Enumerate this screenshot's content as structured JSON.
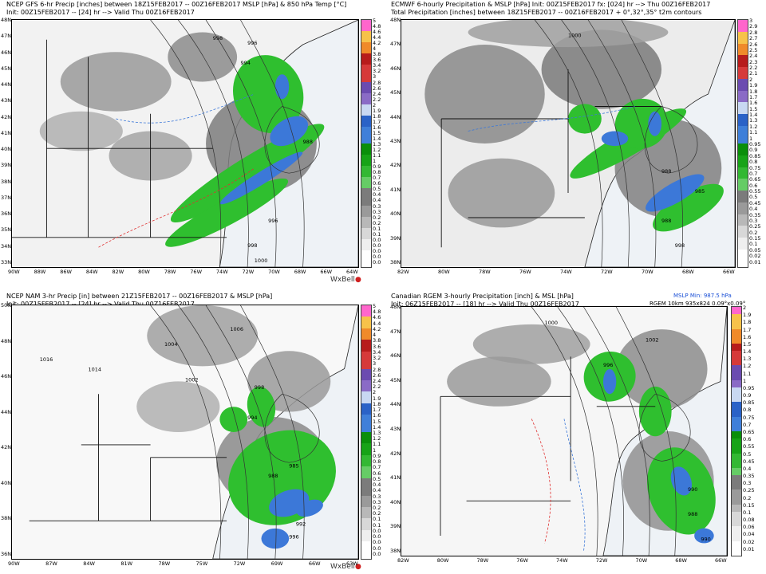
{
  "colors": {
    "precip_ramp": [
      "#ffffff",
      "#efefef",
      "#d8d8d8",
      "#b8b8b8",
      "#9a9a9a",
      "#7b7b7b",
      "#66cc66",
      "#33b833",
      "#17a317",
      "#0a8f0a",
      "#3f7fd9",
      "#2a62c7",
      "#c8d8f2",
      "#8a6bc6",
      "#6b4bb0",
      "#d63a3a",
      "#b71c1c",
      "#f08a2a",
      "#f7c24a",
      "#ff66cc"
    ],
    "green": "#2fbf2f",
    "blue": "#3c78d8",
    "gray": "#8c8c8c",
    "red": "#e03030"
  },
  "panels": [
    {
      "id": "gfs",
      "header": [
        "NCEP GFS 6-hr Precip [inches] between 18Z15FEB2017 -- 00Z16FEB2017 MSLP [hPa] & 850 hPa Temp [°C]",
        "Init: 00Z15FEB2017 -- [24] hr --> Valid Thu 00Z16FEB2017"
      ],
      "lat_labels": [
        "48N",
        "47N",
        "46N",
        "45N",
        "44N",
        "43N",
        "42N",
        "41N",
        "40N",
        "39N",
        "38N",
        "37N",
        "36N",
        "35N",
        "34N",
        "33N"
      ],
      "lon_labels": [
        "90W",
        "88W",
        "86W",
        "84W",
        "82W",
        "80W",
        "78W",
        "76W",
        "74W",
        "72W",
        "70W",
        "68W",
        "66W",
        "64W"
      ],
      "colorbar": [
        "5",
        "4.8",
        "4.6",
        "4.4",
        "4.2",
        "4",
        "3.8",
        "3.6",
        "3.4",
        "3.2",
        "3",
        "2.8",
        "2.6",
        "2.4",
        "2.2",
        "2",
        "1.9",
        "1.8",
        "1.7",
        "1.6",
        "1.5",
        "1.4",
        "1.3",
        "1.2",
        "1.1",
        "1",
        "0.9",
        "0.8",
        "0.7",
        "0.6",
        "0.5",
        "0.45",
        "0.4",
        "0.35",
        "0.3",
        "0.25",
        "0.2",
        "0.15",
        "0.1",
        "0.08",
        "0.06",
        "0.04",
        "0.02",
        "0.01"
      ],
      "isobars": [
        "998",
        "996",
        "994",
        "988",
        "996",
        "998",
        "1000"
      ],
      "brand": "WxBell"
    },
    {
      "id": "ecmwf",
      "header": [
        "ECMWF 6-hourly Precipitation & MSLP [hPa] Init: 00Z15FEB2017 fx: [024] hr --> Thu 00Z16FEB2017",
        "Total Precipitation [inches] between 18Z15FEB2017 -- 00Z16FEB2017 + 0°,32°,35° t2m contours"
      ],
      "lat_labels": [
        "48N",
        "47N",
        "46N",
        "45N",
        "44N",
        "43N",
        "42N",
        "41N",
        "40N",
        "39N",
        "38N"
      ],
      "lon_labels": [
        "82W",
        "80W",
        "78W",
        "76W",
        "74W",
        "72W",
        "70W",
        "68W",
        "66W"
      ],
      "colorbar": [
        "3",
        "2.9",
        "2.8",
        "2.7",
        "2.6",
        "2.5",
        "2.4",
        "2.3",
        "2.2",
        "2.1",
        "2",
        "1.9",
        "1.8",
        "1.7",
        "1.6",
        "1.5",
        "1.4",
        "1.3",
        "1.2",
        "1.1",
        "1",
        "0.95",
        "0.9",
        "0.85",
        "0.8",
        "0.75",
        "0.7",
        "0.65",
        "0.6",
        "0.55",
        "0.5",
        "0.45",
        "0.4",
        "0.35",
        "0.3",
        "0.25",
        "0.2",
        "0.15",
        "0.1",
        "0.05",
        "0.02",
        "0.01"
      ],
      "isobars": [
        "1000",
        "988",
        "985",
        "988",
        "998"
      ],
      "brand": ""
    },
    {
      "id": "nam",
      "header": [
        "NCEP NAM 3-hr Precip [in] between 21Z15FEB2017 -- 00Z16FEB2017 & MSLP [hPa]",
        "Init: 00Z15FEB2017 -- [24] hr --> Valid Thu 00Z16FEB2017"
      ],
      "lat_labels": [
        "50N",
        "48N",
        "46N",
        "44N",
        "42N",
        "40N",
        "38N",
        "36N"
      ],
      "lon_labels": [
        "90W",
        "87W",
        "84W",
        "81W",
        "78W",
        "75W",
        "72W",
        "69W",
        "66W",
        "63W"
      ],
      "colorbar": [
        "5",
        "4.8",
        "4.6",
        "4.4",
        "4.2",
        "4",
        "3.8",
        "3.6",
        "3.4",
        "3.2",
        "3",
        "2.8",
        "2.6",
        "2.4",
        "2.2",
        "2",
        "1.9",
        "1.8",
        "1.7",
        "1.6",
        "1.5",
        "1.4",
        "1.3",
        "1.2",
        "1.1",
        "1",
        "0.9",
        "0.8",
        "0.7",
        "0.6",
        "0.5",
        "0.45",
        "0.4",
        "0.35",
        "0.3",
        "0.25",
        "0.2",
        "0.15",
        "0.1",
        "0.08",
        "0.06",
        "0.04",
        "0.02",
        "0.01"
      ],
      "isobars": [
        "1016",
        "1014",
        "1004",
        "1006",
        "1002",
        "998",
        "994",
        "988",
        "985",
        "992",
        "996"
      ],
      "brand": "WxBell"
    },
    {
      "id": "rgem",
      "header": [
        "Canadian RGEM 3-hourly Precipitation [inch] & MSL [hPa]",
        "Init: 06Z15FEB2017 -- [18] hr --> Valid Thu 00Z16FEB2017"
      ],
      "notes": [
        "MSLP Min: 987.5 hPa",
        "RGEM 10km 935x824 0.09°x0.09°"
      ],
      "lat_labels": [
        "48N",
        "47N",
        "46N",
        "45N",
        "44N",
        "43N",
        "42N",
        "41N",
        "40N",
        "39N",
        "38N"
      ],
      "lon_labels": [
        "82W",
        "80W",
        "78W",
        "76W",
        "74W",
        "72W",
        "70W",
        "68W",
        "66W"
      ],
      "colorbar": [
        "2",
        "1.9",
        "1.8",
        "1.7",
        "1.6",
        "1.5",
        "1.4",
        "1.3",
        "1.2",
        "1.1",
        "1",
        "0.95",
        "0.9",
        "0.85",
        "0.8",
        "0.75",
        "0.7",
        "0.65",
        "0.6",
        "0.55",
        "0.5",
        "0.45",
        "0.4",
        "0.35",
        "0.3",
        "0.25",
        "0.2",
        "0.15",
        "0.1",
        "0.08",
        "0.06",
        "0.04",
        "0.02",
        "0.01"
      ],
      "isobars": [
        "1000",
        "1002",
        "996",
        "990",
        "988",
        "990"
      ],
      "brand": ""
    }
  ]
}
